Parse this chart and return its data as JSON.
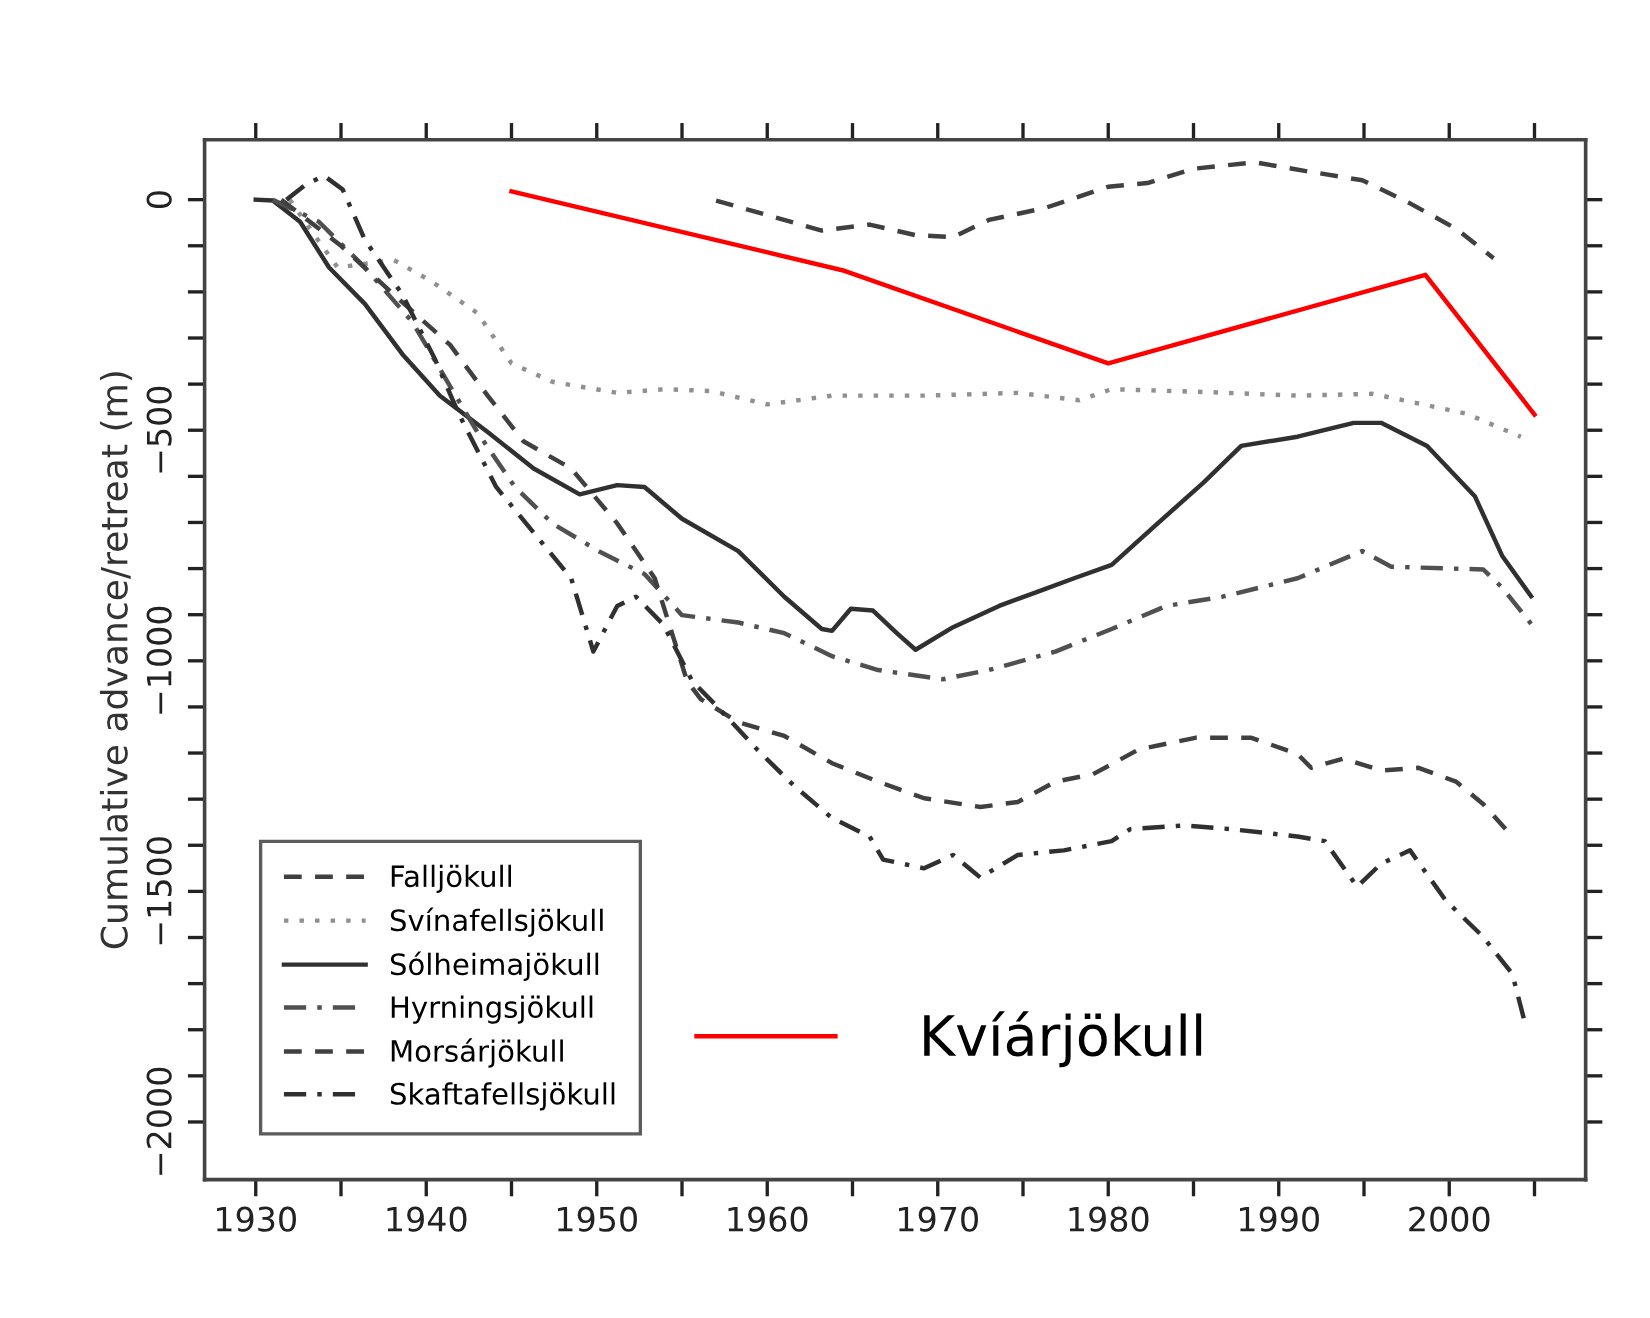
{
  "chart_data": {
    "type": "line",
    "ylabel": "Cumulative advance/retreat (m)",
    "xlim": [
      1927,
      2008
    ],
    "ylim": [
      -2125,
      130
    ],
    "xticks": [
      1930,
      {
        "value": 1935,
        "label": null
      },
      1940,
      {
        "value": 1945,
        "label": null
      },
      1950,
      {
        "value": 1955,
        "label": null
      },
      1960,
      {
        "value": 1965,
        "label": null
      },
      1970,
      {
        "value": 1975,
        "label": null
      },
      1980,
      {
        "value": 1985,
        "label": null
      },
      1990,
      {
        "value": 1995,
        "label": null
      },
      2000,
      {
        "value": 2005,
        "label": null
      }
    ],
    "yticks": [
      0,
      {
        "value": -100,
        "label": null
      },
      {
        "value": -200,
        "label": null
      },
      {
        "value": -300,
        "label": null
      },
      {
        "value": -400,
        "label": null
      },
      {
        "value": -500,
        "label": "−500"
      },
      {
        "value": -600,
        "label": null
      },
      {
        "value": -700,
        "label": null
      },
      {
        "value": -800,
        "label": null
      },
      {
        "value": -900,
        "label": null
      },
      {
        "value": -1000,
        "label": "−1000"
      },
      {
        "value": -1100,
        "label": null
      },
      {
        "value": -1200,
        "label": null
      },
      {
        "value": -1300,
        "label": null
      },
      {
        "value": -1400,
        "label": null
      },
      {
        "value": -1500,
        "label": "−1500"
      },
      {
        "value": -1600,
        "label": null
      },
      {
        "value": -1700,
        "label": null
      },
      {
        "value": -1800,
        "label": null
      },
      {
        "value": -1900,
        "label": null
      },
      {
        "value": -2000,
        "label": "−2000"
      }
    ],
    "grid": false,
    "legend": "bottom left",
    "marker": "none",
    "series": [
      {
        "name": "Falljökull",
        "color": "#404040",
        "line_style": "dashed",
        "x": [
          1957,
          1963.2,
          1966,
          1968.7,
          1970.9,
          1973,
          1976.3,
          1980,
          1982.3,
          1985,
          1988.6,
          1991.6,
          1994.9,
          1997.7,
          2000.4,
          2002.6
        ],
        "values": [
          -2,
          -67,
          -54,
          -77,
          -81,
          -44,
          -18,
          28,
          36,
          67,
          81,
          62,
          42,
          -8,
          -63,
          -127
        ]
      },
      {
        "name": "Svínafellsjökull",
        "color": "#909090",
        "line_style": "dotted",
        "x": [
          1932,
          1933.5,
          1934.8,
          1938.1,
          1940.3,
          1943,
          1945,
          1947.4,
          1951.2,
          1954,
          1956.7,
          1960,
          1963.8,
          1969.2,
          1974.7,
          1978.3,
          1980.2,
          1985.6,
          1991.1,
          1995.5,
          2001,
          2004.2
        ],
        "values": [
          0,
          -80,
          -147,
          -131,
          -177,
          -246,
          -355,
          -395,
          -419,
          -411,
          -415,
          -444,
          -425,
          -425,
          -419,
          -435,
          -411,
          -417,
          -425,
          -421,
          -464,
          -514
        ]
      },
      {
        "name": "Sólheimajökull",
        "color": "#303030",
        "line_style": "solid",
        "x": [
          1930,
          1931,
          1932.6,
          1934.3,
          1936.4,
          1938.6,
          1940.8,
          1943.6,
          1946.3,
          1949,
          1951.2,
          1952.8,
          1955,
          1958.3,
          1961,
          1963.2,
          1963.8,
          1964.9,
          1966.2,
          1967.6,
          1968.7,
          1970.9,
          1973.6,
          1975.8,
          1978,
          1980.2,
          1982.9,
          1985.6,
          1987.8,
          1991.1,
          1994.4,
          1996,
          1998.7,
          2001.5,
          2003.1,
          2004.8
        ],
        "values": [
          0,
          -2,
          -48,
          -147,
          -226,
          -335,
          -425,
          -504,
          -583,
          -639,
          -619,
          -623,
          -692,
          -762,
          -861,
          -931,
          -935,
          -887,
          -891,
          -940,
          -976,
          -927,
          -881,
          -851,
          -821,
          -792,
          -702,
          -613,
          -534,
          -514,
          -484,
          -484,
          -534,
          -643,
          -772,
          -860
        ]
      },
      {
        "name": "Hyrningsjökull",
        "color": "#505050",
        "line_style": "dashdot",
        "x": [
          1931,
          1933.7,
          1936.4,
          1939.2,
          1941.4,
          1943,
          1945.2,
          1947.4,
          1950.1,
          1952.8,
          1955,
          1958.3,
          1961,
          1963.8,
          1966.5,
          1970.3,
          1973,
          1976.9,
          1980.2,
          1983.4,
          1986.7,
          1991.1,
          1994.9,
          1996.6,
          2002,
          2003.1,
          2004.8
        ],
        "values": [
          0,
          -48,
          -147,
          -266,
          -405,
          -504,
          -623,
          -702,
          -762,
          -812,
          -901,
          -917,
          -940,
          -990,
          -1020,
          -1040,
          -1020,
          -980,
          -931,
          -881,
          -861,
          -821,
          -762,
          -796,
          -802,
          -841,
          -920
        ]
      },
      {
        "name": "Morsárjökull",
        "color": "#404040",
        "line_style": "dashed",
        "x": [
          1931.5,
          1935,
          1938.1,
          1941.4,
          1943.6,
          1945.7,
          1948.5,
          1951.2,
          1953.4,
          1955.3,
          1956.1,
          1958.3,
          1961,
          1963.8,
          1966.5,
          1969.2,
          1972.5,
          1974.7,
          1976.9,
          1979.1,
          1981.8,
          1985.1,
          1988.4,
          1991.1,
          1991.9,
          1993.8,
          1996,
          1998.2,
          2000.4,
          2002,
          2003.7
        ],
        "values": [
          0,
          -100,
          -206,
          -315,
          -425,
          -524,
          -583,
          -702,
          -821,
          -1044,
          -1083,
          -1133,
          -1163,
          -1222,
          -1262,
          -1298,
          -1317,
          -1306,
          -1262,
          -1246,
          -1192,
          -1167,
          -1167,
          -1202,
          -1232,
          -1212,
          -1238,
          -1232,
          -1262,
          -1311,
          -1381
        ]
      },
      {
        "name": "Skaftafellsjökull",
        "color": "#303030",
        "line_style": "dashdot",
        "x": [
          1931.8,
          1932.9,
          1934,
          1935.1,
          1936.4,
          1938.6,
          1940.5,
          1941.9,
          1944.1,
          1946.3,
          1948.5,
          1949.8,
          1951.2,
          1952.3,
          1953.9,
          1955.6,
          1956.9,
          1959.4,
          1961.6,
          1963.8,
          1966,
          1966.8,
          1969.2,
          1970.9,
          1972.5,
          1974.7,
          1977.4,
          1980.2,
          1981.3,
          1984.5,
          1987.2,
          1991.1,
          1992.7,
          1994.6,
          1996,
          1997.7,
          1999.8,
          2002,
          2003.7,
          2004.5
        ],
        "values": [
          0,
          32,
          52,
          22,
          -87,
          -206,
          -345,
          -464,
          -623,
          -722,
          -821,
          -980,
          -881,
          -861,
          -921,
          -1044,
          -1093,
          -1192,
          -1272,
          -1341,
          -1381,
          -1431,
          -1450,
          -1421,
          -1470,
          -1421,
          -1411,
          -1391,
          -1365,
          -1357,
          -1365,
          -1381,
          -1391,
          -1490,
          -1440,
          -1411,
          -1520,
          -1599,
          -1679,
          -1794
        ]
      },
      {
        "name": "Kvíárjökull",
        "color": "#ff0000",
        "line_style": "solid",
        "x": [
          1945,
          1964.4,
          1980,
          1998.6,
          2005
        ],
        "values": [
          18,
          -153,
          -355,
          -163,
          -466
        ]
      }
    ]
  }
}
